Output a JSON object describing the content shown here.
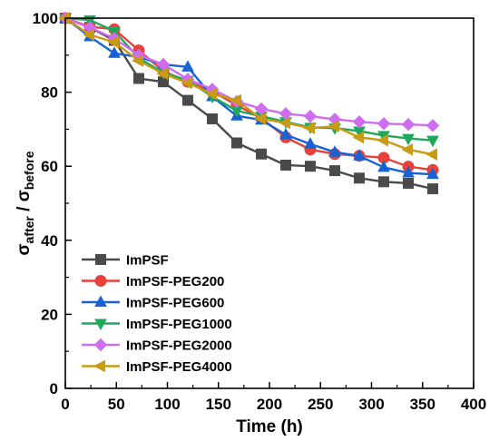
{
  "chart_data": {
    "type": "line",
    "xlabel": "Time (h)",
    "ylabel": {
      "main": "σ",
      "sub1": "after",
      "sep": " / σ",
      "sub2": "before"
    },
    "xlim": [
      0,
      400
    ],
    "ylim": [
      0,
      100
    ],
    "xticks": [
      0,
      50,
      100,
      150,
      200,
      250,
      300,
      350,
      400
    ],
    "yticks": [
      0,
      20,
      40,
      60,
      80,
      100
    ],
    "legend_position": "bottom-left",
    "series": [
      {
        "name": "ImPSF",
        "color": "#4a4a4a",
        "marker": "square",
        "x": [
          0,
          24,
          48,
          72,
          96,
          120,
          144,
          168,
          192,
          216,
          240,
          264,
          288,
          312,
          336,
          360
        ],
        "y": [
          100,
          97.5,
          94,
          83.7,
          82.8,
          77.8,
          72.8,
          66.3,
          63.3,
          60.3,
          60,
          58.8,
          56.8,
          55.8,
          55.4,
          53.9
        ]
      },
      {
        "name": "ImPSF-PEG200",
        "color": "#e8413c",
        "marker": "circle",
        "x": [
          0,
          24,
          48,
          72,
          96,
          120,
          144,
          168,
          192,
          216,
          240,
          264,
          288,
          312,
          336,
          360
        ],
        "y": [
          100,
          97.7,
          97,
          91.3,
          85.7,
          82.8,
          80.2,
          76.5,
          73,
          67.8,
          64.5,
          63.3,
          62.8,
          62.3,
          59.9,
          59
        ]
      },
      {
        "name": "ImPSF-PEG600",
        "color": "#1763d4",
        "marker": "triangle-up",
        "x": [
          0,
          24,
          48,
          72,
          96,
          120,
          144,
          168,
          192,
          216,
          240,
          264,
          288,
          312,
          336,
          360
        ],
        "y": [
          100,
          95,
          90.5,
          89.5,
          87.5,
          86.8,
          78.8,
          73.6,
          72.5,
          68.5,
          66,
          63.8,
          62.8,
          59.7,
          58.2,
          57.8
        ]
      },
      {
        "name": "ImPSF-PEG1000",
        "color": "#1ea85a",
        "marker": "triangle-down",
        "x": [
          0,
          24,
          48,
          72,
          96,
          120,
          144,
          168,
          192,
          216,
          240,
          264,
          288,
          312,
          336,
          360
        ],
        "y": [
          100,
          99.5,
          96.5,
          89.2,
          85.3,
          83.2,
          78.8,
          75,
          73.5,
          72,
          70.5,
          70.3,
          69.5,
          68.3,
          67.5,
          67
        ]
      },
      {
        "name": "ImPSF-PEG2000",
        "color": "#cf6df0",
        "marker": "diamond",
        "x": [
          0,
          24,
          48,
          72,
          96,
          120,
          144,
          168,
          192,
          216,
          240,
          264,
          288,
          312,
          336,
          360
        ],
        "y": [
          100,
          97.5,
          94.5,
          90,
          87.5,
          83.5,
          80.8,
          77.5,
          75.5,
          74.2,
          73.5,
          72.7,
          72,
          71.5,
          71.3,
          71
        ]
      },
      {
        "name": "ImPSF-PEG4000",
        "color": "#c99a13",
        "marker": "triangle-left",
        "x": [
          0,
          24,
          48,
          72,
          96,
          120,
          144,
          168,
          192,
          216,
          240,
          264,
          288,
          312,
          336,
          360
        ],
        "y": [
          100,
          95.5,
          93.5,
          88.5,
          85,
          82.5,
          79.5,
          77.8,
          72.8,
          71.7,
          70.3,
          70.8,
          67.8,
          67,
          64.5,
          63.2
        ]
      }
    ]
  }
}
